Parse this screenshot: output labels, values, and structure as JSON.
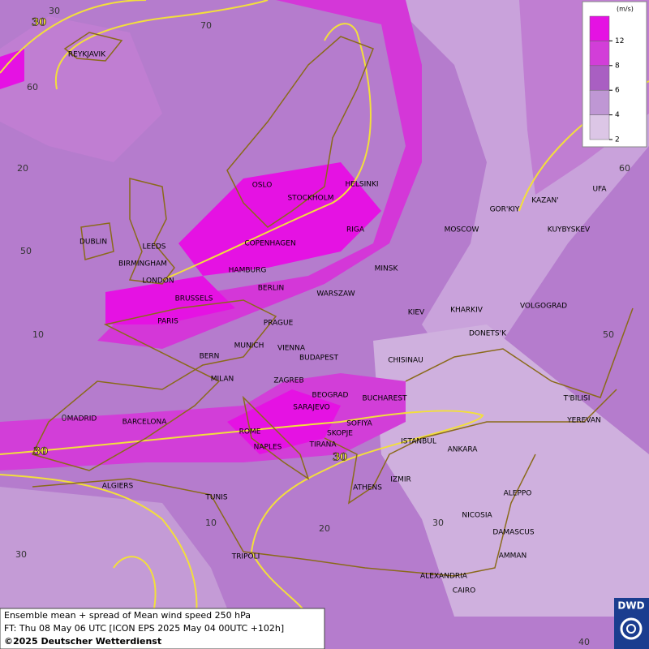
{
  "legend": {
    "unit": "(m/s)",
    "ticks": [
      2,
      4,
      6,
      8,
      12
    ],
    "colors": [
      "#dcc6e6",
      "#bf97d4",
      "#a95fc2",
      "#d23ed8",
      "#e512e3"
    ]
  },
  "caption": [
    "Ensemble mean + spread of Mean wind speed 250 hPa",
    "FT: Thu 08 May 06 UTC [ICON EPS 2025 May 04 00UTC +102h]",
    "©2025 Deutscher Wetterdienst"
  ],
  "logo": "DWD",
  "cities": [
    "REYKJAVIK",
    "OSLO",
    "STOCKHOLM",
    "HELSINKI",
    "DUBLIN",
    "LEEDS",
    "BIRMINGHAM",
    "LONDON",
    "COPENHAGEN",
    "RIGA",
    "HAMBURG",
    "BERLIN",
    "BRUSSELS",
    "PARIS",
    "MINSK",
    "WARSZAW",
    "MOSCOW",
    "GOR'KIY",
    "KAZAN'",
    "UFA",
    "KUYBYSKEV",
    "KIEV",
    "KHARKIV",
    "VOLGOGRAD",
    "DONETS'K",
    "PRAGUE",
    "MUNICH",
    "VIENNA",
    "BERN",
    "BUDAPEST",
    "CHISINAU",
    "MILAN",
    "ZAGREB",
    "BEOGRAD",
    "BUCHAREST",
    "SARAJEVO",
    "T'BILISI",
    "YEREVAN",
    "MADRID",
    "BARCELONA",
    "SOFIYA",
    "ROME",
    "SKOPJE",
    "ISTANBUL",
    "NAPLES",
    "TIRANA",
    "ANKARA",
    "ALGIERS",
    "IZMIR",
    "ATHENS",
    "ALEPPO",
    "TUNIS",
    "NICOSIA",
    "DAMASCUS",
    "AMMAN",
    "TRIPOLI",
    "ALEXANDRIA",
    "CAIRO"
  ],
  "grid_labels": [
    "30",
    "70",
    "60",
    "20",
    "60",
    "50",
    "10",
    "50",
    "0",
    "10",
    "20",
    "30",
    "30",
    "40"
  ],
  "contour_labels": [
    "30",
    "30",
    "30"
  ]
}
